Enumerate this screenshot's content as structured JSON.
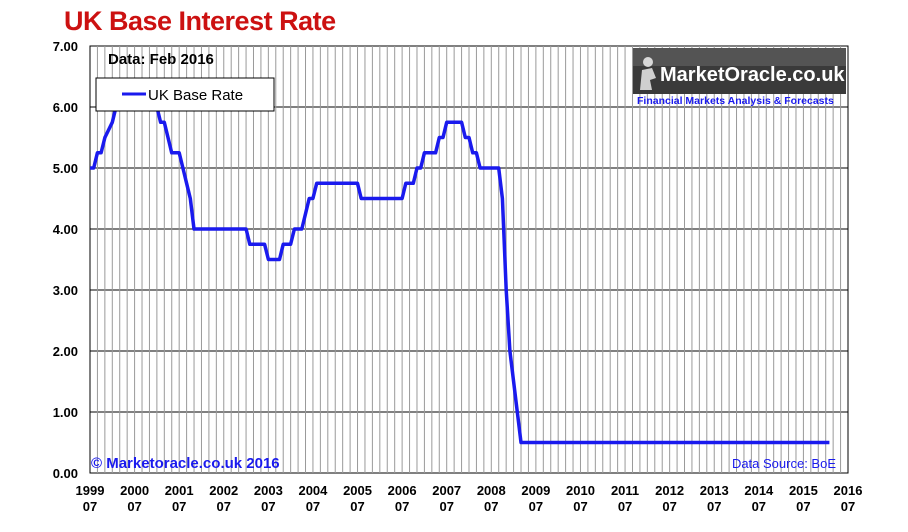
{
  "page": {
    "title": "UK Base Interest Rate"
  },
  "chart_data": {
    "type": "line",
    "title": "UK Base Interest Rate",
    "subtitle": "Data: Feb 2016",
    "xlabel": "",
    "ylabel": "",
    "ylim": [
      0,
      7
    ],
    "xlim": [
      1999.5,
      2016.5
    ],
    "grid": true,
    "legend_position": "top-left",
    "y_ticks": [
      "0.00",
      "1.00",
      "2.00",
      "3.00",
      "4.00",
      "5.00",
      "6.00",
      "7.00"
    ],
    "x_ticks": [
      {
        "year": "1999",
        "month": "07"
      },
      {
        "year": "2000",
        "month": "07"
      },
      {
        "year": "2001",
        "month": "07"
      },
      {
        "year": "2002",
        "month": "07"
      },
      {
        "year": "2003",
        "month": "07"
      },
      {
        "year": "2004",
        "month": "07"
      },
      {
        "year": "2005",
        "month": "07"
      },
      {
        "year": "2006",
        "month": "07"
      },
      {
        "year": "2007",
        "month": "07"
      },
      {
        "year": "2008",
        "month": "07"
      },
      {
        "year": "2009",
        "month": "07"
      },
      {
        "year": "2010",
        "month": "07"
      },
      {
        "year": "2011",
        "month": "07"
      },
      {
        "year": "2012",
        "month": "07"
      },
      {
        "year": "2013",
        "month": "07"
      },
      {
        "year": "2014",
        "month": "07"
      },
      {
        "year": "2015",
        "month": "07"
      },
      {
        "year": "2016",
        "month": "07"
      }
    ],
    "series": [
      {
        "name": "UK Base Rate",
        "color": "#1a1aee",
        "points": [
          {
            "x": "1999-07",
            "y": 5.0
          },
          {
            "x": "1999-08",
            "y": 5.0
          },
          {
            "x": "1999-09",
            "y": 5.25
          },
          {
            "x": "1999-10",
            "y": 5.25
          },
          {
            "x": "1999-11",
            "y": 5.5
          },
          {
            "x": "2000-01",
            "y": 5.75
          },
          {
            "x": "2000-02",
            "y": 6.0
          },
          {
            "x": "2001-01",
            "y": 6.0
          },
          {
            "x": "2001-02",
            "y": 5.75
          },
          {
            "x": "2001-03",
            "y": 5.75
          },
          {
            "x": "2001-04",
            "y": 5.5
          },
          {
            "x": "2001-05",
            "y": 5.25
          },
          {
            "x": "2001-07",
            "y": 5.25
          },
          {
            "x": "2001-08",
            "y": 5.0
          },
          {
            "x": "2001-09",
            "y": 4.75
          },
          {
            "x": "2001-10",
            "y": 4.5
          },
          {
            "x": "2001-11",
            "y": 4.0
          },
          {
            "x": "2003-01",
            "y": 4.0
          },
          {
            "x": "2003-02",
            "y": 3.75
          },
          {
            "x": "2003-06",
            "y": 3.75
          },
          {
            "x": "2003-07",
            "y": 3.5
          },
          {
            "x": "2003-10",
            "y": 3.5
          },
          {
            "x": "2003-11",
            "y": 3.75
          },
          {
            "x": "2004-01",
            "y": 3.75
          },
          {
            "x": "2004-02",
            "y": 4.0
          },
          {
            "x": "2004-04",
            "y": 4.0
          },
          {
            "x": "2004-05",
            "y": 4.25
          },
          {
            "x": "2004-06",
            "y": 4.5
          },
          {
            "x": "2004-07",
            "y": 4.5
          },
          {
            "x": "2004-08",
            "y": 4.75
          },
          {
            "x": "2005-07",
            "y": 4.75
          },
          {
            "x": "2005-08",
            "y": 4.5
          },
          {
            "x": "2006-07",
            "y": 4.5
          },
          {
            "x": "2006-08",
            "y": 4.75
          },
          {
            "x": "2006-10",
            "y": 4.75
          },
          {
            "x": "2006-11",
            "y": 5.0
          },
          {
            "x": "2006-12",
            "y": 5.0
          },
          {
            "x": "2007-01",
            "y": 5.25
          },
          {
            "x": "2007-04",
            "y": 5.25
          },
          {
            "x": "2007-05",
            "y": 5.5
          },
          {
            "x": "2007-06",
            "y": 5.5
          },
          {
            "x": "2007-07",
            "y": 5.75
          },
          {
            "x": "2007-11",
            "y": 5.75
          },
          {
            "x": "2007-12",
            "y": 5.5
          },
          {
            "x": "2008-01",
            "y": 5.5
          },
          {
            "x": "2008-02",
            "y": 5.25
          },
          {
            "x": "2008-03",
            "y": 5.25
          },
          {
            "x": "2008-04",
            "y": 5.0
          },
          {
            "x": "2008-09",
            "y": 5.0
          },
          {
            "x": "2008-10",
            "y": 4.5
          },
          {
            "x": "2008-11",
            "y": 3.0
          },
          {
            "x": "2008-12",
            "y": 2.0
          },
          {
            "x": "2009-01",
            "y": 1.5
          },
          {
            "x": "2009-02",
            "y": 1.0
          },
          {
            "x": "2009-03",
            "y": 0.5
          },
          {
            "x": "2016-02",
            "y": 0.5
          }
        ]
      }
    ],
    "annotations": {
      "data_date": "Data: Feb 2016",
      "copyright": "© Marketoracle.co.uk 2016",
      "source": "Data Source: BoE"
    },
    "logo": {
      "name": "MarketOracle.co.uk",
      "tagline": "Financial Markets Analysis & Forecasts"
    },
    "colors": {
      "title": "#cc1111",
      "line": "#1a1aee",
      "grid": "#999999",
      "footer_text": "#1a1aee",
      "tagline": "#1a1aee"
    }
  }
}
